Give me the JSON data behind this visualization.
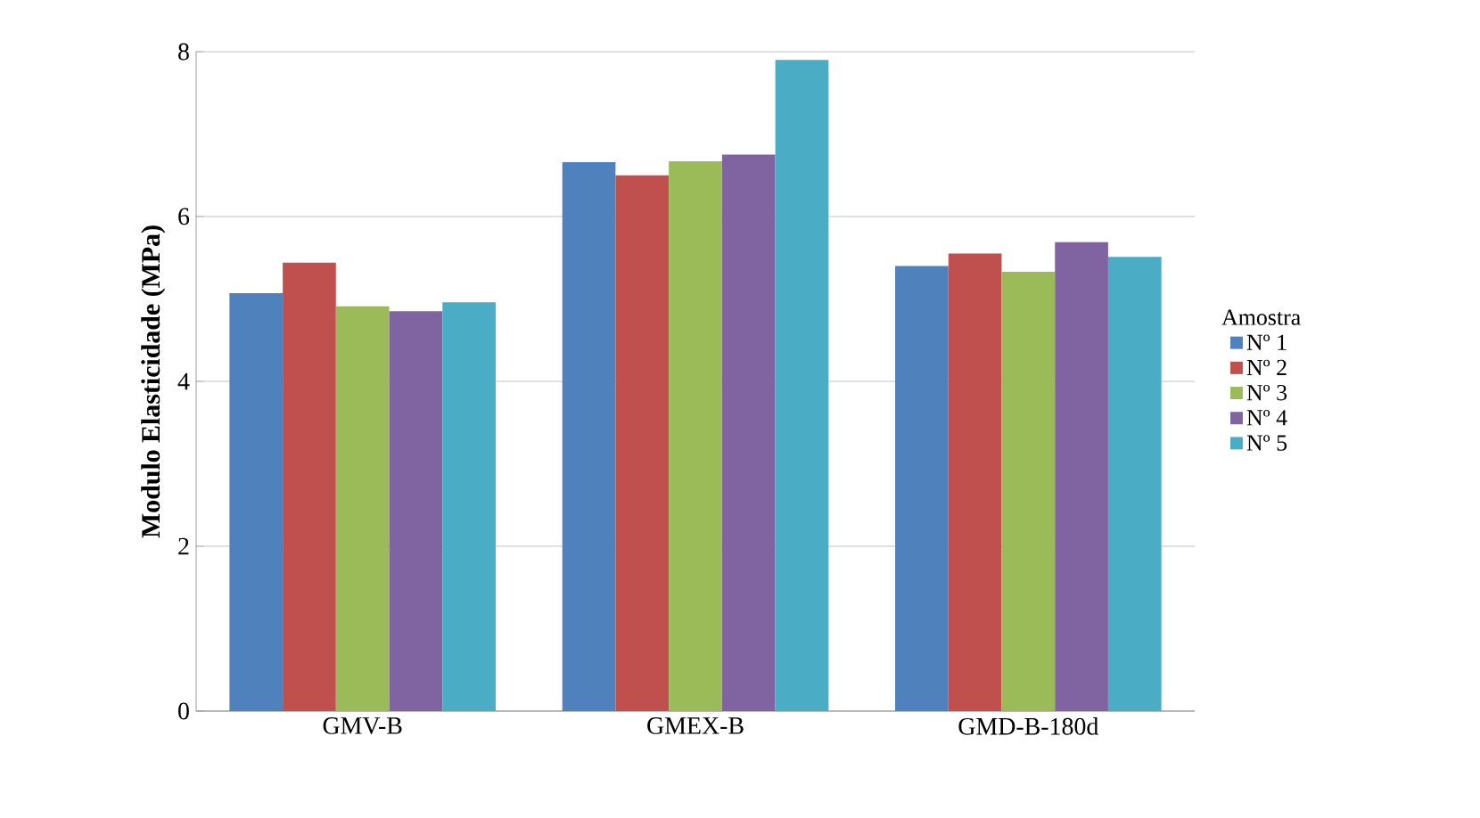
{
  "chart_data": {
    "type": "bar",
    "ylabel": "Modulo Elasticidade (MPa)",
    "legend_title": "Amostra",
    "categories": [
      "GMV-B",
      "GMEX-B",
      "GMD-B-180d"
    ],
    "series": [
      {
        "name": "Nº 1",
        "color": "#4f81bd",
        "values": [
          5.07,
          6.66,
          5.4
        ]
      },
      {
        "name": "Nº 2",
        "color": "#c0504d",
        "values": [
          5.44,
          6.5,
          5.55
        ]
      },
      {
        "name": "Nº 3",
        "color": "#9bbb59",
        "values": [
          4.91,
          6.67,
          5.33
        ]
      },
      {
        "name": "Nº 4",
        "color": "#8064a2",
        "values": [
          4.85,
          6.75,
          5.69
        ]
      },
      {
        "name": "Nº 5",
        "color": "#4bacc6",
        "values": [
          4.96,
          7.9,
          5.51
        ]
      }
    ],
    "ylim": [
      0,
      8
    ],
    "yticks": [
      0,
      2,
      4,
      6,
      8
    ],
    "grid": "y",
    "legend": "right"
  }
}
